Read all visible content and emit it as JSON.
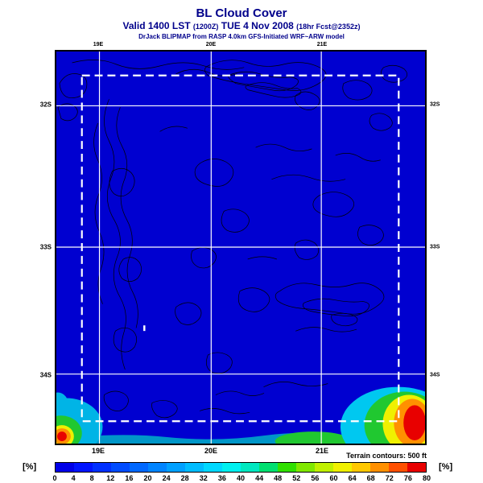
{
  "header": {
    "title": "BL Cloud Cover",
    "valid_prefix": "Valid 1400 LST ",
    "valid_z": "(1200Z)",
    "valid_mid": " TUE 4 Nov 2008 ",
    "valid_fcst": "(18hr Fcst@2352z)",
    "model_line": "DrJack BLIPMAP from RASP 4.0km GFS-Initiated WRF~ARW model"
  },
  "axes": {
    "top": [
      "19E",
      "20E",
      "21E"
    ],
    "bottom": [
      "19E",
      "20E",
      "21E"
    ],
    "left": [
      "32S",
      "33S",
      "34S"
    ],
    "right": [
      "32S",
      "33S",
      "34S"
    ]
  },
  "footer": {
    "terrain_note": "Terrain contours: 500 ft",
    "unit_label_left": "[%]",
    "unit_label_right": "[%]"
  },
  "colorbar": {
    "ticks": [
      "0",
      "4",
      "8",
      "12",
      "16",
      "20",
      "24",
      "28",
      "32",
      "36",
      "40",
      "44",
      "48",
      "52",
      "56",
      "60",
      "64",
      "68",
      "72",
      "76",
      "80"
    ],
    "colors": [
      "#0000e8",
      "#0014ff",
      "#0030ff",
      "#004cff",
      "#0068ff",
      "#0084ff",
      "#00a0ff",
      "#00bcff",
      "#00d8ff",
      "#00f0f0",
      "#00e8c0",
      "#00e070",
      "#30e000",
      "#80e800",
      "#c0f000",
      "#f0f000",
      "#ffc800",
      "#ff9000",
      "#ff5000",
      "#e80000"
    ],
    "units": "%"
  },
  "map_colors": {
    "background_blue": "#0000d0",
    "grid_white": "#ffffff",
    "contour_black": "#000000"
  }
}
